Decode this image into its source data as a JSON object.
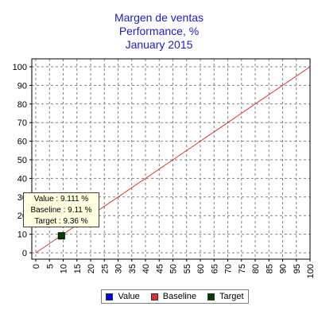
{
  "chart_data": {
    "type": "line",
    "title": "Margen de ventas",
    "subtitle": "Performance, %",
    "period": "January 2015",
    "xlim": [
      0,
      100
    ],
    "ylim": [
      0,
      100
    ],
    "x_ticks": [
      "0",
      "5",
      "10",
      "15",
      "20",
      "25",
      "30",
      "35",
      "40",
      "45",
      "50",
      "55",
      "60",
      "65",
      "70",
      "75",
      "80",
      "85",
      "90",
      "95",
      "100"
    ],
    "y_ticks": [
      "0",
      "10",
      "20",
      "30",
      "40",
      "50",
      "60",
      "70",
      "80",
      "90",
      "100"
    ],
    "grid": true,
    "legend_position": "bottom",
    "series": [
      {
        "name": "Value",
        "color": "#0000ff",
        "points": []
      },
      {
        "name": "Baseline",
        "color": "#e03030",
        "points": [
          [
            0,
            0
          ],
          [
            100,
            100
          ]
        ]
      },
      {
        "name": "Target",
        "color": "#004000",
        "points": [
          [
            9.36,
            9.11
          ]
        ]
      }
    ],
    "tooltip": {
      "value_text": "Value : 9.111 %",
      "baseline_text": "Baseline : 9.11 %",
      "target_text": "Target : 9.36 %"
    }
  }
}
